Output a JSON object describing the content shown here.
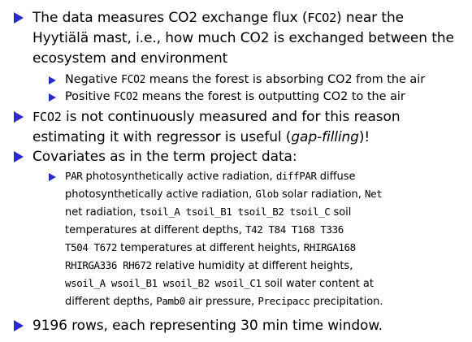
{
  "colors": {
    "bullet": "#2b2bc8",
    "text": "#000000",
    "background": "#ffffff"
  },
  "bullets": {
    "b1": {
      "line1_a": "The data measures CO2 exchange flux (",
      "line1_code": "FCO2",
      "line1_b": ") near the",
      "line2": "Hyytiälä mast, i.e., how much CO2 is exchanged between the",
      "line3": "ecosystem and environment",
      "sub": [
        {
          "code": "FCO2",
          "pre": "Negative ",
          "post": " means the forest is absorbing CO2 from the air"
        },
        {
          "code": "FCO2",
          "pre": "Positive ",
          "post": " means the forest is outputting CO2 to the air"
        }
      ]
    },
    "b2": {
      "line1_code": "FCO2",
      "line1_b": " is not continuously measured and for this reason",
      "line2_a": "estimating it with regressor is useful (",
      "line2_em": "gap-filling",
      "line2_b": ")!"
    },
    "b3": {
      "line1": "Covariates as in the term project data:",
      "sub_lines": {
        "l1": {
          "c1": "PAR",
          "t1": " photosynthetically active radiation, ",
          "c2": "diffPAR",
          "t2": " diffuse"
        },
        "l2": {
          "t1": "photosynthetically active radiation, ",
          "c1": "Glob",
          "t2": " solar radiation, ",
          "c2": "Net"
        },
        "l3": {
          "t1": "net radiation, ",
          "c1": "tsoil_A tsoil_B1 tsoil_B2 tsoil_C",
          "t2": " soil"
        },
        "l4": {
          "t1": "temperatures at different depths, ",
          "c1": "T42 T84 T168 T336"
        },
        "l5": {
          "c1": "T504 T672",
          "t1": " temperatures at different heights, ",
          "c2": "RHIRGA168"
        },
        "l6": {
          "c1": "RHIRGA336 RH672",
          "t1": " relative humidity at different heights,"
        },
        "l7": {
          "c1": "wsoil_A wsoil_B1 wsoil_B2 wsoil_C1",
          "t1": " soil water content at"
        },
        "l8": {
          "t1": "different depths, ",
          "c1": "Pamb0",
          "t2": " air pressure, ",
          "c2": "Precipacc",
          "t3": " precipitation."
        }
      }
    },
    "b4": {
      "line1": "9196 rows, each representing 30 min time window."
    }
  }
}
